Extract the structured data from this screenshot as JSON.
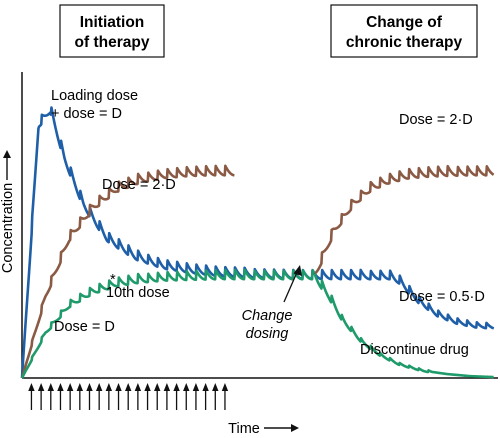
{
  "panels": {
    "left_title": [
      "Initiation",
      "of therapy"
    ],
    "right_title": [
      "Change of",
      "chronic therapy"
    ]
  },
  "chart_data": {
    "type": "line",
    "title": "",
    "xlabel": "Time",
    "ylabel": "Concentration",
    "xlim": [
      0,
      100
    ],
    "ylim": [
      0,
      100
    ],
    "grid": false,
    "x_tick_labels": "none",
    "y_tick_labels": "none",
    "colors": {
      "loading": "#1f5fa8",
      "double": "#8a5a44",
      "standard": "#1f9a6a",
      "axis": "#111111"
    },
    "series": [
      {
        "key": "loading",
        "color": "#1f5fa8",
        "description": "Loading dose + dose = D: rapid peak then decline to steady state; after dose change declines to 0.5·D level",
        "segments": [
          {
            "x": [
              0,
              3.5,
              6,
              9,
              13,
              18,
              24,
              30,
              36,
              42,
              50,
              60,
              70,
              78,
              80,
              84,
              88,
              92,
              96,
              100
            ],
            "y": [
              0,
              83,
              88,
              72,
              57,
              46,
              40,
              37,
              35.5,
              34.5,
              34,
              33.6,
              33.5,
              33.5,
              32,
              25.5,
              21,
              18.5,
              17.2,
              16.8
            ]
          }
        ]
      },
      {
        "key": "double",
        "color": "#8a5a44",
        "description": "Dose = 2·D: rises to twice steady state (initiation), and after change of therapy",
        "segments": [
          {
            "x": [
              0,
              5,
              10,
              15,
              20,
              25,
              30,
              35,
              40,
              45
            ],
            "y": [
              0,
              27,
              46,
              56,
              62,
              65,
              66.5,
              67.2,
              67.5,
              67.5
            ]
          },
          {
            "x": [
              62,
              66,
              70,
              74,
              78,
              82,
              86,
              90,
              95,
              100
            ],
            "y": [
              33.5,
              48,
              57,
              62.5,
              65,
              66.5,
              67,
              67.3,
              67.5,
              67.5
            ]
          }
        ]
      },
      {
        "key": "standard",
        "color": "#1f9a6a",
        "description": "Dose = D: gradual approach to steady state; after discontinuation decays to zero",
        "segments": [
          {
            "x": [
              0,
              5,
              10,
              15,
              20,
              25,
              30,
              36,
              42,
              50,
              56,
              62
            ],
            "y": [
              0,
              15,
              24,
              28.5,
              31,
              32.3,
              33,
              33.3,
              33.5,
              33.5,
              33.5,
              33.5
            ]
          },
          {
            "x": [
              62,
              65,
              68,
              72,
              76,
              80,
              85,
              90,
              95,
              100
            ],
            "y": [
              33.5,
              27,
              19,
              12,
              7.5,
              4.5,
              2.4,
              1.3,
              0.6,
              0.3
            ]
          }
        ]
      }
    ],
    "dose_arrows": {
      "count": 21,
      "x_start": 2,
      "x_end": 43
    },
    "annotations": {
      "loading_label": [
        "Loading dose",
        "+ dose = D"
      ],
      "double_left": "Dose = 2·D",
      "double_right": "Dose = 2·D",
      "tenth_dose": "10th dose",
      "tenth_star": "*",
      "standard_label": "Dose = D",
      "half_label": "Dose = 0.5·D",
      "change_label": [
        "Change",
        "dosing"
      ],
      "discontinue_label": "Discontinue drug"
    }
  }
}
